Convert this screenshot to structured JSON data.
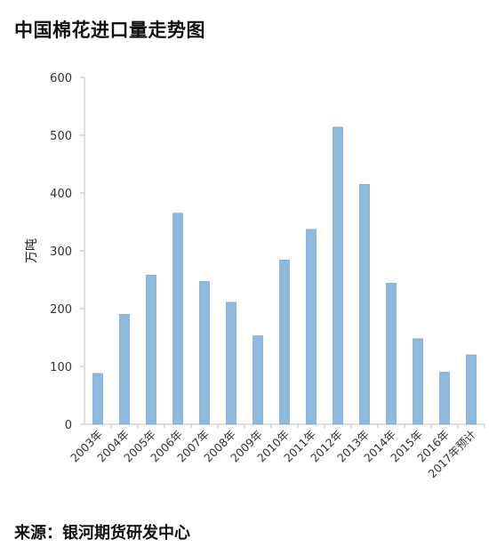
{
  "title": "中国棉花进口量走势图",
  "source": "来源：银河期货研发中心",
  "chart_data": {
    "type": "bar",
    "ylabel": "万吨",
    "xlabel": "",
    "ylim": [
      0,
      600
    ],
    "yticks": [
      0,
      100,
      200,
      300,
      400,
      500,
      600
    ],
    "grid": false,
    "categories": [
      "2003年",
      "2004年",
      "2005年",
      "2006年",
      "2007年",
      "2008年",
      "2009年",
      "2010年",
      "2011年",
      "2012年",
      "2013年",
      "2014年",
      "2015年",
      "2016年",
      "2017年预计"
    ],
    "values": [
      88,
      190,
      258,
      365,
      247,
      211,
      153,
      284,
      337,
      514,
      415,
      244,
      148,
      90,
      120
    ],
    "bar_color": "#8fb9dd",
    "bar_edge_color": "#6a9ccc",
    "axis_color": "#bfbfbf"
  }
}
